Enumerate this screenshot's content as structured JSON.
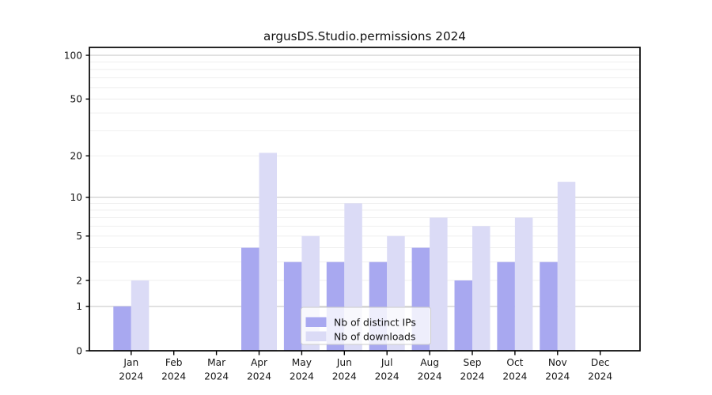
{
  "title": "argusDS.Studio.permissions 2024",
  "colors": {
    "background": "#ffffff",
    "axis": "#000000",
    "grid_major": "#c3c3c3",
    "grid_minor": "#ededed",
    "bar_ips": "#a8a8f0",
    "bar_downloads": "#dbdbf6",
    "legend_border": "#cccccc"
  },
  "chart_data": {
    "type": "bar",
    "title": "argusDS.Studio.permissions 2024",
    "xlabel": "",
    "ylabel": "",
    "year": "2024",
    "months": [
      "Jan",
      "Feb",
      "Mar",
      "Apr",
      "May",
      "Jun",
      "Jul",
      "Aug",
      "Sep",
      "Oct",
      "Nov",
      "Dec"
    ],
    "categories": [
      "Jan 2024",
      "Feb 2024",
      "Mar 2024",
      "Apr 2024",
      "May 2024",
      "Jun 2024",
      "Jul 2024",
      "Aug 2024",
      "Sep 2024",
      "Oct 2024",
      "Nov 2024",
      "Dec 2024"
    ],
    "series": [
      {
        "name": "Nb of distinct IPs",
        "color": "#a8a8f0",
        "values": [
          1,
          0,
          0,
          4,
          3,
          3,
          3,
          4,
          2,
          3,
          3,
          0
        ]
      },
      {
        "name": "Nb of downloads",
        "color": "#dbdbf6",
        "values": [
          2,
          0,
          0,
          21,
          5,
          9,
          5,
          7,
          6,
          7,
          13,
          0
        ]
      }
    ],
    "yscale": "log1p",
    "ylim": [
      0,
      113
    ],
    "y_ticks": [
      0,
      1,
      2,
      5,
      10,
      20,
      50,
      100
    ],
    "y_major_gridlines": [
      1,
      10,
      100
    ],
    "y_minor_gridlines": [
      2,
      3,
      4,
      5,
      6,
      7,
      8,
      9,
      20,
      30,
      40,
      50,
      60,
      70,
      80,
      90
    ],
    "grid": "on",
    "legend_position": "lower center"
  }
}
